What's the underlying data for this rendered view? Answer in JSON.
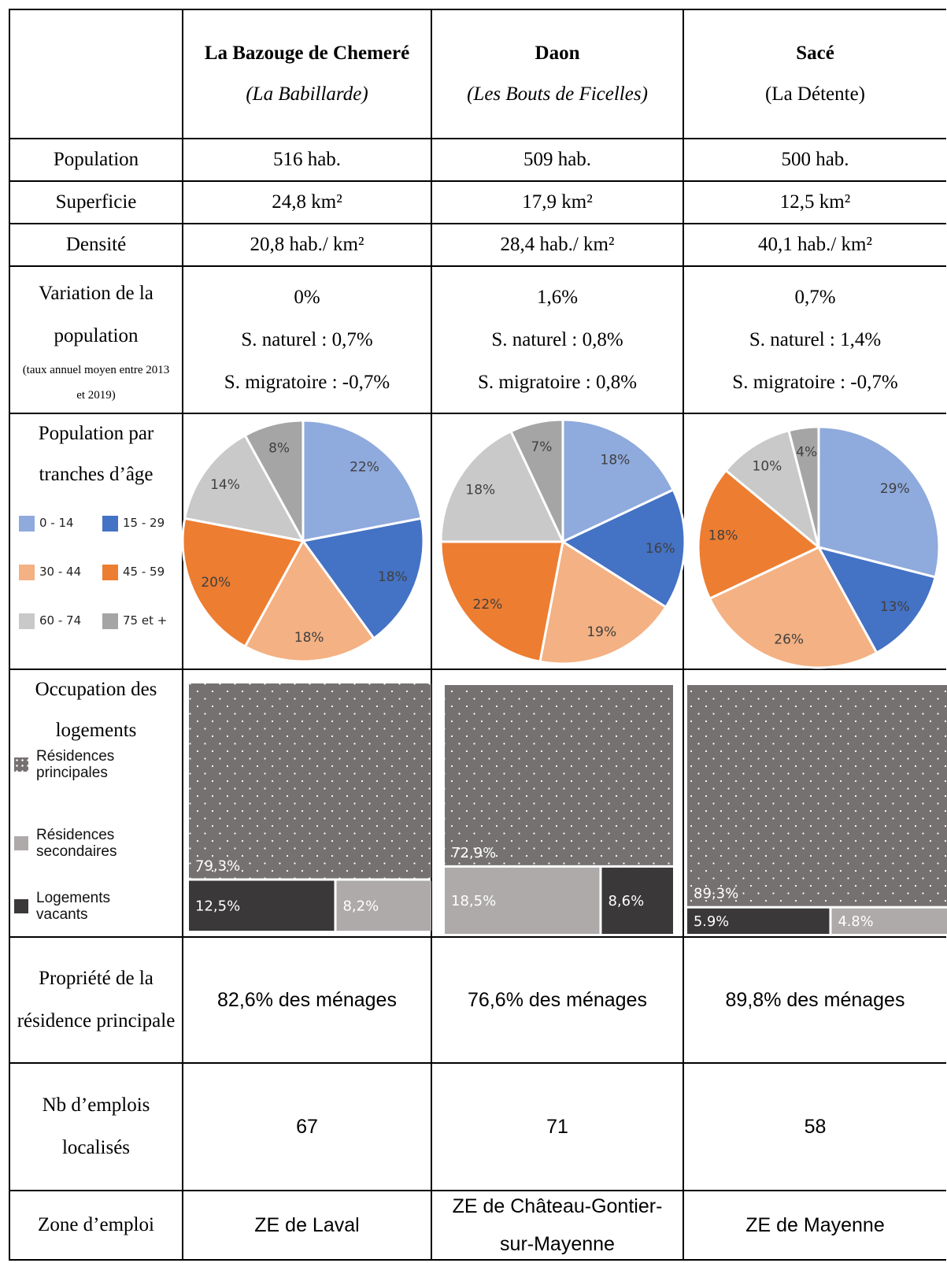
{
  "table": {
    "header": {
      "columns": [
        {
          "name": "La Bazouge de Chemeré",
          "subtitle": "(La Babillarde)",
          "subtitle_italic": true
        },
        {
          "name": "Daon",
          "subtitle": "(Les Bouts de Ficelles)",
          "subtitle_italic": true
        },
        {
          "name": "Sacé",
          "subtitle": "(La Détente)",
          "subtitle_italic": false
        }
      ]
    },
    "rows": [
      {
        "label": "Population",
        "values": [
          "516 hab.",
          "509 hab.",
          "500 hab."
        ]
      },
      {
        "label": "Superficie",
        "values": [
          "24,8 km²",
          "17,9 km²",
          "12,5 km²"
        ]
      },
      {
        "label": "Densité",
        "values": [
          "20,8 hab./ km²",
          "28,4 hab./ km²",
          "40,1 hab./ km²"
        ]
      },
      {
        "label": "Variation de la population",
        "note": "(taux annuel moyen entre 2013 et 2019)",
        "values": [
          [
            "0%",
            "S. naturel : 0,7%",
            "S. migratoire : -0,7%"
          ],
          [
            "1,6%",
            "S. naturel : 0,8%",
            "S. migratoire : 0,8%"
          ],
          [
            "0,7%",
            "S. naturel : 1,4%",
            "S. migratoire : -0,7%"
          ]
        ]
      },
      {
        "label": "Population par tranches d’âge",
        "categories": [
          "0 - 14",
          "15 - 29",
          "30 - 44",
          "45 - 59",
          "60 - 74",
          "75 et +"
        ],
        "colors": [
          "#8faadc",
          "#4472c4",
          "#f4b183",
          "#ed7d31",
          "#c9c9c9",
          "#a5a5a5"
        ],
        "pies": [
          {
            "values": [
              22,
              18,
              18,
              20,
              14,
              8
            ],
            "value_labels": [
              "22%",
              "18%",
              "18%",
              "20%",
              "14%",
              "8%"
            ]
          },
          {
            "values": [
              18,
              16,
              19,
              22,
              18,
              7
            ],
            "value_labels": [
              "18%",
              "16%",
              "19%",
              "22%",
              "18%",
              "7%"
            ]
          },
          {
            "values": [
              29,
              13,
              26,
              18,
              10,
              4
            ],
            "value_labels": [
              "29%",
              "13%",
              "26%",
              "18%",
              "10%",
              "4%"
            ]
          }
        ]
      },
      {
        "label": "Occupation des logements",
        "categories": [
          "Résidences principales",
          "Résidences secondaires",
          "Logements vacants"
        ],
        "colors": [
          "#767171",
          "#aeaaaa",
          "#3a3838"
        ],
        "patterns": [
          "dots",
          "none",
          "none"
        ],
        "treemaps": [
          {
            "values": [
              79.3,
              8.2,
              12.5
            ],
            "value_labels": [
              "79,3%",
              "8,2%",
              "12,5%"
            ]
          },
          {
            "values": [
              72.9,
              18.5,
              8.6
            ],
            "value_labels": [
              "72,9%",
              "18,5%",
              "8,6%"
            ]
          },
          {
            "values": [
              89.3,
              4.8,
              5.9
            ],
            "value_labels": [
              "89,3%",
              "4.8%",
              "5.9%"
            ]
          }
        ]
      },
      {
        "label": "Propriété de la résidence principale",
        "values": [
          "82,6% des ménages",
          "76,6% des ménages",
          "89,8% des ménages"
        ]
      },
      {
        "label": "Nb d’emplois localisés",
        "values": [
          "67",
          "71",
          "58"
        ]
      },
      {
        "label": "Zone d’emploi",
        "values": [
          "ZE de Laval",
          "ZE de Château-Gontier-sur-Mayenne",
          "ZE de Mayenne"
        ]
      }
    ]
  }
}
